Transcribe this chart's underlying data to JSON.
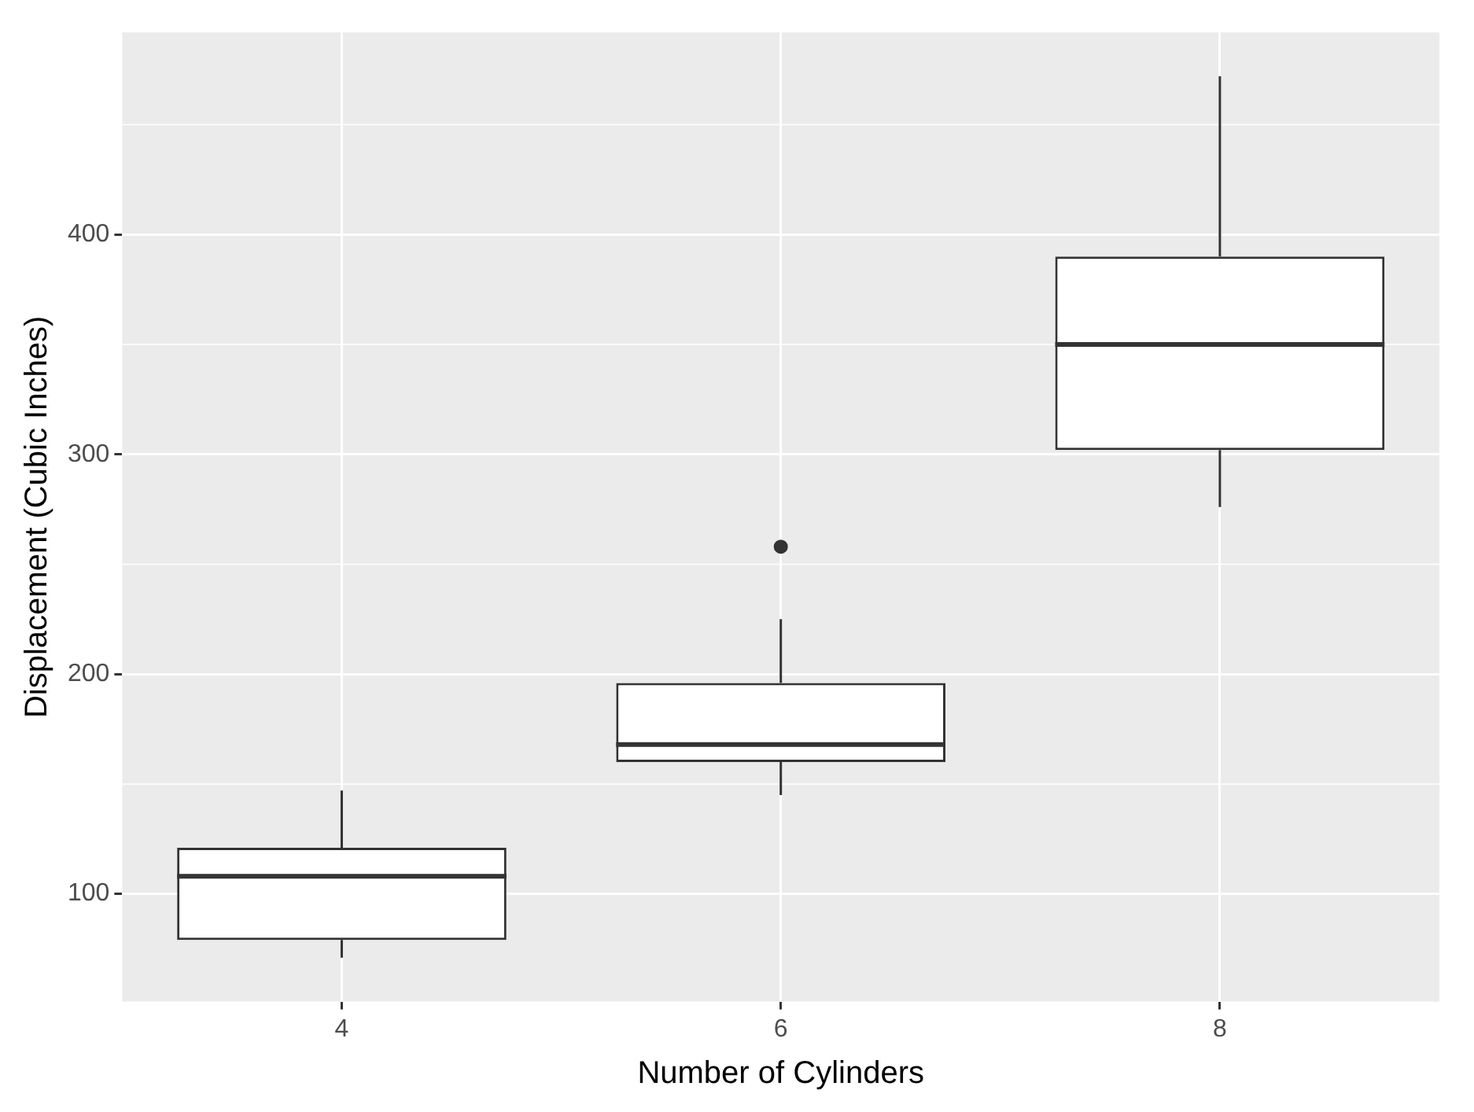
{
  "chart_data": {
    "type": "box",
    "xlabel": "Number of Cylinders",
    "ylabel": "Displacement (Cubic Inches)",
    "categories": [
      "4",
      "6",
      "8"
    ],
    "boxes": [
      {
        "low": 71,
        "q1": 79,
        "median": 108,
        "q3": 121,
        "high": 147
      },
      {
        "low": 145,
        "q1": 160,
        "median": 168,
        "q3": 196,
        "high": 225,
        "outliers": [
          258
        ]
      },
      {
        "low": 276,
        "q1": 302,
        "median": 350,
        "q3": 390,
        "high": 472
      }
    ],
    "ylim": [
      51,
      492
    ],
    "yticks": [
      100,
      200,
      300,
      400
    ],
    "grid": true
  }
}
